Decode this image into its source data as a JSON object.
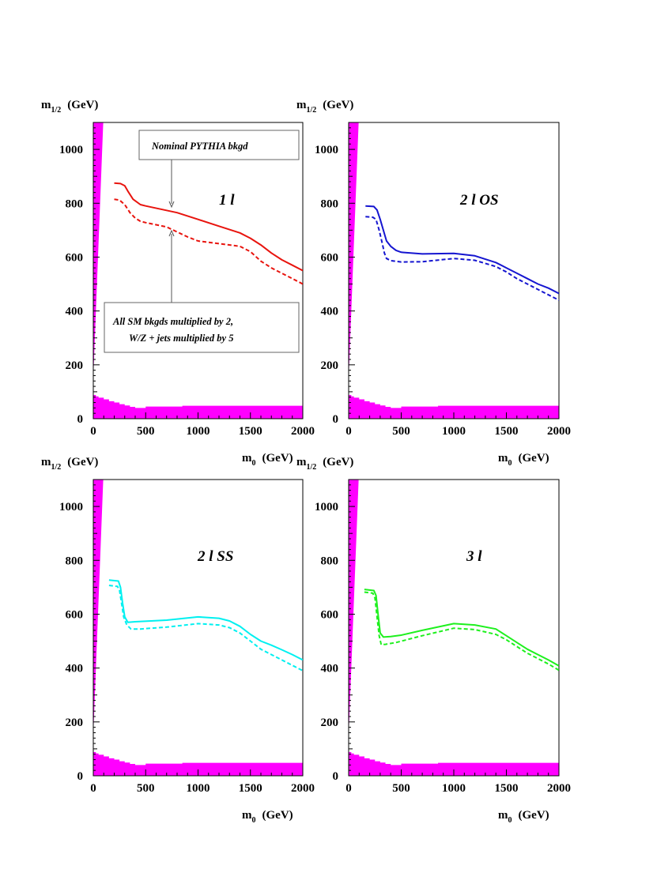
{
  "colors": {
    "excluded": "#ff00ff",
    "frame": "#000000",
    "annot_arrow": "#555555"
  },
  "annotations": {
    "nominal": "Nominal PYTHIA  bkgd",
    "modified_line1": "All  SM  bkgds  multiplied  by 2,",
    "modified_line2": "W/Z + jets  multiplied  by 5"
  },
  "chart_data": [
    {
      "type": "line",
      "panel_label": "1 l",
      "xlabel": "m",
      "xlabel_sub": "0",
      "xlabel_unit": "(GeV)",
      "ylabel": "m",
      "ylabel_sub": "1/2",
      "ylabel_unit": "(GeV)",
      "xlim": [
        0,
        2000
      ],
      "ylim": [
        0,
        1100
      ],
      "xticks": [
        0,
        500,
        1000,
        1500,
        2000
      ],
      "yticks": [
        0,
        200,
        400,
        600,
        800,
        1000
      ],
      "color": "#e8140e",
      "series": [
        {
          "style": "solid",
          "x": [
            200,
            260,
            300,
            330,
            380,
            450,
            500,
            800,
            1000,
            1200,
            1400,
            1500,
            1600,
            1700,
            1800,
            1900,
            2000
          ],
          "y": [
            875,
            873,
            865,
            845,
            815,
            795,
            790,
            765,
            740,
            715,
            690,
            670,
            645,
            615,
            590,
            570,
            550
          ]
        },
        {
          "style": "dashed",
          "x": [
            200,
            250,
            300,
            350,
            400,
            450,
            500,
            700,
            900,
            1000,
            1200,
            1400,
            1500,
            1600,
            1700,
            1800,
            1900,
            2000
          ],
          "y": [
            815,
            812,
            795,
            765,
            745,
            733,
            728,
            712,
            675,
            660,
            650,
            640,
            620,
            585,
            560,
            540,
            520,
            500
          ]
        }
      ]
    },
    {
      "type": "line",
      "panel_label": "2 l  OS",
      "xlabel": "m",
      "xlabel_sub": "0",
      "xlabel_unit": "(GeV)",
      "ylabel": "m",
      "ylabel_sub": "1/2",
      "ylabel_unit": "(GeV)",
      "xlim": [
        0,
        2000
      ],
      "ylim": [
        0,
        1100
      ],
      "xticks": [
        0,
        500,
        1000,
        1500,
        2000
      ],
      "yticks": [
        0,
        200,
        400,
        600,
        800,
        1000
      ],
      "color": "#1515d0",
      "series": [
        {
          "style": "solid",
          "x": [
            160,
            240,
            270,
            300,
            330,
            360,
            400,
            450,
            500,
            700,
            1000,
            1200,
            1400,
            1500,
            1600,
            1700,
            1800,
            1900,
            2000
          ],
          "y": [
            790,
            788,
            775,
            740,
            700,
            660,
            640,
            625,
            618,
            612,
            614,
            605,
            580,
            560,
            540,
            520,
            500,
            485,
            465
          ]
        },
        {
          "style": "dashed",
          "x": [
            160,
            230,
            260,
            290,
            320,
            340,
            360,
            400,
            500,
            700,
            1000,
            1200,
            1400,
            1500,
            1600,
            1700,
            1800,
            1900,
            2000
          ],
          "y": [
            750,
            748,
            740,
            700,
            650,
            615,
            595,
            587,
            582,
            583,
            595,
            588,
            565,
            545,
            520,
            500,
            480,
            460,
            440
          ]
        }
      ]
    },
    {
      "type": "line",
      "panel_label": "2 l  SS",
      "xlabel": "m",
      "xlabel_sub": "0",
      "xlabel_unit": "(GeV)",
      "ylabel": "m",
      "ylabel_sub": "1/2",
      "ylabel_unit": "(GeV)",
      "xlim": [
        0,
        2000
      ],
      "ylim": [
        0,
        1100
      ],
      "xticks": [
        0,
        500,
        1000,
        1500,
        2000
      ],
      "yticks": [
        0,
        200,
        400,
        600,
        800,
        1000
      ],
      "color": "#00f0f0",
      "series": [
        {
          "style": "solid",
          "x": [
            150,
            240,
            260,
            280,
            300,
            330,
            400,
            700,
            1000,
            1200,
            1300,
            1400,
            1500,
            1600,
            1700,
            1800,
            1900,
            2000
          ],
          "y": [
            727,
            723,
            700,
            640,
            590,
            570,
            572,
            578,
            590,
            585,
            575,
            555,
            525,
            500,
            485,
            468,
            450,
            430
          ]
        },
        {
          "style": "dashed",
          "x": [
            150,
            230,
            250,
            270,
            290,
            320,
            360,
            450,
            700,
            1000,
            1200,
            1300,
            1400,
            1500,
            1600,
            1700,
            1800,
            1900,
            2000
          ],
          "y": [
            707,
            703,
            690,
            640,
            590,
            560,
            545,
            545,
            552,
            565,
            560,
            550,
            530,
            500,
            470,
            450,
            430,
            410,
            390
          ]
        }
      ]
    },
    {
      "type": "line",
      "panel_label": "3 l",
      "xlabel": "m",
      "xlabel_sub": "0",
      "xlabel_unit": "(GeV)",
      "ylabel": "m",
      "ylabel_sub": "1/2",
      "ylabel_unit": "(GeV)",
      "xlim": [
        0,
        2000
      ],
      "ylim": [
        0,
        1100
      ],
      "xticks": [
        0,
        500,
        1000,
        1500,
        2000
      ],
      "yticks": [
        0,
        200,
        400,
        600,
        800,
        1000
      ],
      "color": "#1ef01e",
      "series": [
        {
          "style": "solid",
          "x": [
            150,
            240,
            260,
            280,
            300,
            330,
            400,
            500,
            700,
            1000,
            1200,
            1400,
            1500,
            1600,
            1700,
            1800,
            1900,
            2000
          ],
          "y": [
            692,
            688,
            670,
            600,
            530,
            515,
            517,
            522,
            540,
            565,
            560,
            545,
            520,
            495,
            470,
            450,
            430,
            408
          ]
        },
        {
          "style": "dashed",
          "x": [
            150,
            230,
            250,
            270,
            290,
            310,
            350,
            450,
            700,
            1000,
            1200,
            1400,
            1500,
            1600,
            1700,
            1800,
            1900,
            2000
          ],
          "y": [
            682,
            678,
            660,
            590,
            520,
            487,
            488,
            495,
            520,
            548,
            543,
            525,
            505,
            480,
            455,
            435,
            415,
            392
          ]
        }
      ]
    }
  ]
}
